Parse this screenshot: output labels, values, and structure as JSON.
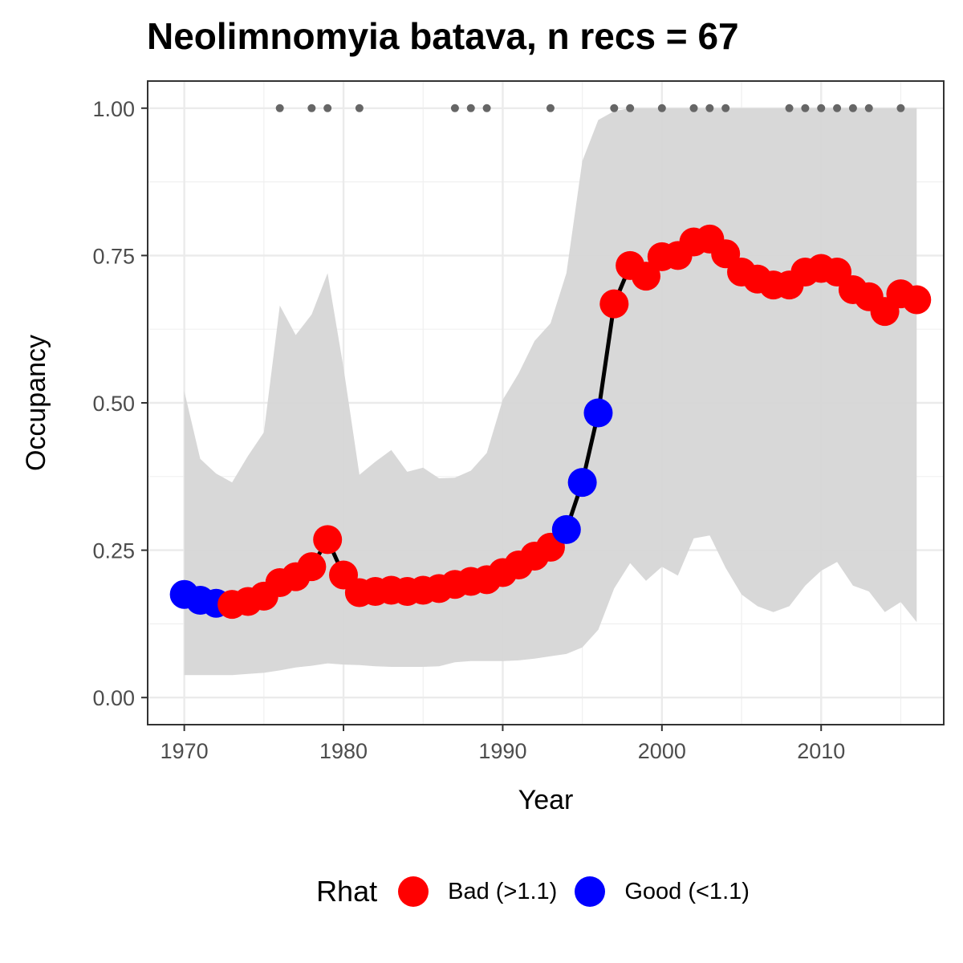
{
  "chart_data": {
    "type": "line",
    "title": "Neolimnomyia batava, n recs = 67",
    "xlabel": "Year",
    "ylabel": "Occupancy",
    "xlim": [
      1967.7,
      2017.7
    ],
    "ylim": [
      -0.046,
      1.046
    ],
    "x_ticks": [
      1970,
      1980,
      1990,
      2000,
      2010
    ],
    "x_tick_labels": [
      "1970",
      "1980",
      "1990",
      "2000",
      "2010"
    ],
    "y_ticks": [
      0,
      0.25,
      0.5,
      0.75,
      1.0
    ],
    "y_tick_labels": [
      "0.00",
      "0.25",
      "0.50",
      "0.75",
      "1.00"
    ],
    "grid": true,
    "legend": {
      "title": "Rhat",
      "position": "bottom",
      "entries": [
        {
          "label": "Bad (>1.1)",
          "color": "#ff0000"
        },
        {
          "label": "Good (<1.1)",
          "color": "#0000ff"
        }
      ]
    },
    "colors": {
      "bad": "#ff0000",
      "good": "#0000ff",
      "line": "#000000",
      "ribbon": "#d6d6d6",
      "records": "#666666"
    },
    "series": [
      {
        "x": [
          1970,
          1971,
          1972,
          1973,
          1974,
          1975,
          1976,
          1977,
          1978,
          1979,
          1980,
          1981,
          1982,
          1983,
          1984,
          1985,
          1986,
          1987,
          1988,
          1989,
          1990,
          1991,
          1992,
          1993,
          1994,
          1995,
          1996,
          1997,
          1998,
          1999,
          2000,
          2001,
          2002,
          2003,
          2004,
          2005,
          2006,
          2007,
          2008,
          2009,
          2010,
          2011,
          2012,
          2013,
          2014,
          2015,
          2016
        ],
        "y": [
          0.175,
          0.165,
          0.16,
          0.158,
          0.163,
          0.172,
          0.195,
          0.205,
          0.222,
          0.268,
          0.208,
          0.178,
          0.18,
          0.182,
          0.18,
          0.182,
          0.185,
          0.192,
          0.197,
          0.2,
          0.212,
          0.225,
          0.24,
          0.255,
          0.285,
          0.365,
          0.483,
          0.668,
          0.733,
          0.715,
          0.748,
          0.75,
          0.773,
          0.778,
          0.753,
          0.722,
          0.71,
          0.7,
          0.7,
          0.722,
          0.728,
          0.722,
          0.692,
          0.68,
          0.655,
          0.685,
          0.675
        ],
        "rhat": [
          "Good",
          "Good",
          "Good",
          "Bad",
          "Bad",
          "Bad",
          "Bad",
          "Bad",
          "Bad",
          "Bad",
          "Bad",
          "Bad",
          "Bad",
          "Bad",
          "Bad",
          "Bad",
          "Bad",
          "Bad",
          "Bad",
          "Bad",
          "Bad",
          "Bad",
          "Bad",
          "Bad",
          "Good",
          "Good",
          "Good",
          "Bad",
          "Bad",
          "Bad",
          "Bad",
          "Bad",
          "Bad",
          "Bad",
          "Bad",
          "Bad",
          "Bad",
          "Bad",
          "Bad",
          "Bad",
          "Bad",
          "Bad",
          "Bad",
          "Bad",
          "Bad",
          "Bad",
          "Bad"
        ],
        "lower": [
          0.038,
          0.038,
          0.038,
          0.038,
          0.04,
          0.042,
          0.046,
          0.051,
          0.054,
          0.058,
          0.056,
          0.055,
          0.053,
          0.052,
          0.052,
          0.052,
          0.053,
          0.06,
          0.062,
          0.062,
          0.062,
          0.063,
          0.066,
          0.07,
          0.074,
          0.085,
          0.115,
          0.185,
          0.228,
          0.198,
          0.222,
          0.207,
          0.27,
          0.275,
          0.22,
          0.175,
          0.155,
          0.145,
          0.155,
          0.19,
          0.215,
          0.23,
          0.19,
          0.18,
          0.145,
          0.162,
          0.128
        ],
        "upper": [
          0.52,
          0.405,
          0.38,
          0.365,
          0.41,
          0.45,
          0.665,
          0.615,
          0.65,
          0.72,
          0.56,
          0.378,
          0.4,
          0.42,
          0.383,
          0.39,
          0.372,
          0.373,
          0.385,
          0.415,
          0.505,
          0.55,
          0.605,
          0.635,
          0.72,
          0.91,
          0.98,
          0.995,
          1.0,
          1.0,
          1.0,
          1.0,
          1.0,
          1.0,
          1.0,
          1.0,
          1.0,
          1.0,
          1.0,
          1.0,
          1.0,
          1.0,
          1.0,
          1.0,
          1.0,
          1.0,
          1.0
        ]
      }
    ],
    "record_years": [
      1976,
      1978,
      1979,
      1981,
      1987,
      1988,
      1989,
      1993,
      1997,
      1998,
      2000,
      2002,
      2003,
      2004,
      2008,
      2009,
      2010,
      2011,
      2012,
      2013,
      2015
    ],
    "record_value": 1.0
  }
}
